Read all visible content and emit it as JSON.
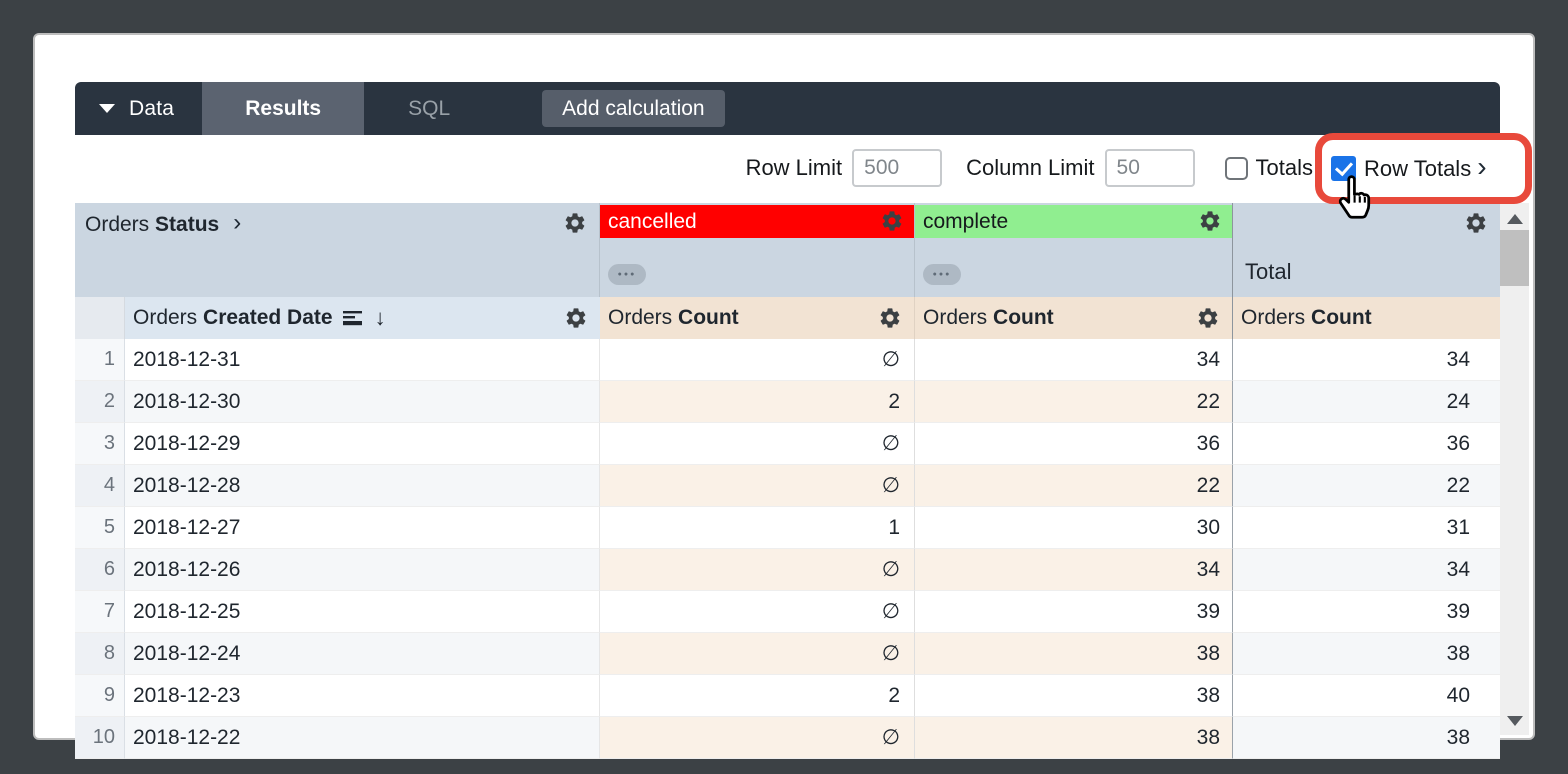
{
  "toolbar": {
    "data_menu": "Data",
    "tabs": [
      {
        "label": "Results",
        "active": true
      },
      {
        "label": "SQL",
        "active": false
      }
    ],
    "add_calculation": "Add calculation"
  },
  "controls": {
    "row_limit": {
      "label": "Row Limit",
      "value": "500"
    },
    "column_limit": {
      "label": "Column Limit",
      "value": "50"
    },
    "totals": {
      "label": "Totals",
      "checked": false
    },
    "row_totals": {
      "label": "Row Totals",
      "checked": true
    }
  },
  "annotation": {
    "highlight_color": "#e8493b"
  },
  "table": {
    "pivot_header": {
      "field_prefix": "Orders",
      "field_name": "Status"
    },
    "pivot_values": [
      {
        "label": "cancelled",
        "bg": "#ff0000",
        "text_color": "#ffffff"
      },
      {
        "label": "complete",
        "bg": "#90ee90",
        "text_color": "#16191c"
      }
    ],
    "row_total_header": "Total",
    "dimension_header": {
      "field_prefix": "Orders",
      "field_name": "Created Date"
    },
    "measure_header": {
      "field_prefix": "Orders",
      "field_name": "Count"
    },
    "null_symbol": "∅",
    "rows": [
      {
        "index": "1",
        "date": "2018-12-31",
        "cancelled": "∅",
        "complete": "34",
        "total": "34"
      },
      {
        "index": "2",
        "date": "2018-12-30",
        "cancelled": "2",
        "complete": "22",
        "total": "24"
      },
      {
        "index": "3",
        "date": "2018-12-29",
        "cancelled": "∅",
        "complete": "36",
        "total": "36"
      },
      {
        "index": "4",
        "date": "2018-12-28",
        "cancelled": "∅",
        "complete": "22",
        "total": "22"
      },
      {
        "index": "5",
        "date": "2018-12-27",
        "cancelled": "1",
        "complete": "30",
        "total": "31"
      },
      {
        "index": "6",
        "date": "2018-12-26",
        "cancelled": "∅",
        "complete": "34",
        "total": "34"
      },
      {
        "index": "7",
        "date": "2018-12-25",
        "cancelled": "∅",
        "complete": "39",
        "total": "39"
      },
      {
        "index": "8",
        "date": "2018-12-24",
        "cancelled": "∅",
        "complete": "38",
        "total": "38"
      },
      {
        "index": "9",
        "date": "2018-12-23",
        "cancelled": "2",
        "complete": "38",
        "total": "40"
      },
      {
        "index": "10",
        "date": "2018-12-22",
        "cancelled": "∅",
        "complete": "38",
        "total": "38"
      }
    ]
  }
}
